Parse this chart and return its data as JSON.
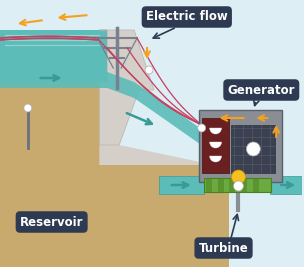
{
  "bg_color": "#ddeef5",
  "labels": {
    "electric_flow": "Electric flow",
    "generator": "Generator",
    "reservoir": "Reservoir",
    "turbine": "Turbine"
  },
  "label_bg": "#2d3a52",
  "label_fg": "#ffffff",
  "water_color": "#5bbcb8",
  "water_dark": "#3a9a96",
  "land_color": "#c8a96e",
  "dam_color": "#d4cfc8",
  "dam_dark": "#b8b3ac",
  "generator_box": "#8a8e94",
  "generator_dark": "#5a6070",
  "cable_color": "#c44060",
  "arrow_color": "#f5a020",
  "arrow_water": "#3a9a96",
  "turbine_color": "#6aaa40",
  "turbine_dark": "#4a8020",
  "pole_color": "#7a8090"
}
